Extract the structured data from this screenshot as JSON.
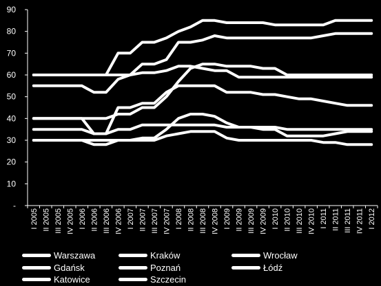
{
  "chart_data": {
    "type": "line",
    "title": "",
    "xlabel": "",
    "ylabel": "",
    "ylim": [
      0,
      90
    ],
    "yticks": [
      0,
      10,
      20,
      30,
      40,
      50,
      60,
      70,
      80,
      90
    ],
    "ytick_labels": [
      "-",
      "10",
      "20",
      "30",
      "40",
      "50",
      "60",
      "70",
      "80",
      "90"
    ],
    "grid": false,
    "legend_position": "bottom",
    "line_color": "#ffffff",
    "background_color": "#000000",
    "categories": [
      "I 2005",
      "II 2005",
      "III 2005",
      "IV 2005",
      "I 2006",
      "II 2006",
      "III 2006",
      "IV 2006",
      "I 2007",
      "II 2007",
      "III 2007",
      "IV 2007",
      "I 2008",
      "II 2008",
      "III 2008",
      "IV 2008",
      "I 2009",
      "II 2009",
      "III 2009",
      "IV 2009",
      "I 2010",
      "II 2010",
      "III 2010",
      "IV 2010",
      "I 2011",
      "II 2011",
      "III 2011",
      "IV 2011",
      "I 2012"
    ],
    "series": [
      {
        "name": "Warszawa",
        "values": [
          60,
          60,
          60,
          60,
          60,
          60,
          60,
          70,
          70,
          75,
          75,
          77,
          80,
          82,
          85,
          85,
          84,
          84,
          84,
          84,
          83,
          83,
          83,
          83,
          83,
          85,
          85,
          85,
          85
        ]
      },
      {
        "name": "Kraków",
        "values": [
          60,
          60,
          60,
          60,
          60,
          60,
          60,
          60,
          60,
          65,
          65,
          67,
          75,
          75,
          76,
          78,
          77,
          77,
          77,
          77,
          77,
          77,
          77,
          77,
          78,
          79,
          79,
          79,
          79
        ]
      },
      {
        "name": "Wrocław",
        "values": [
          40,
          40,
          40,
          40,
          40,
          40,
          40,
          42,
          42,
          45,
          45,
          50,
          57,
          63,
          65,
          65,
          64,
          64,
          64,
          63,
          63,
          60,
          60,
          60,
          60,
          60,
          60,
          60,
          60
        ]
      },
      {
        "name": "Gdańsk",
        "values": [
          55,
          55,
          55,
          55,
          55,
          52,
          52,
          58,
          60,
          61,
          61,
          62,
          64,
          64,
          63,
          62,
          62,
          59,
          59,
          59,
          59,
          59,
          59,
          59,
          59,
          59,
          59,
          59,
          59
        ]
      },
      {
        "name": "Poznań",
        "values": [
          40,
          40,
          40,
          40,
          40,
          33,
          33,
          45,
          45,
          47,
          47,
          52,
          55,
          55,
          55,
          55,
          52,
          52,
          52,
          51,
          51,
          50,
          49,
          49,
          48,
          47,
          46,
          46,
          46
        ]
      },
      {
        "name": "Łódź",
        "values": [
          35,
          35,
          35,
          35,
          35,
          33,
          33,
          35,
          35,
          37,
          37,
          37,
          37,
          37,
          37,
          37,
          36,
          36,
          36,
          36,
          36,
          35,
          35,
          35,
          35,
          35,
          35,
          35,
          35
        ]
      },
      {
        "name": "Katowice",
        "values": [
          30,
          30,
          30,
          30,
          30,
          28,
          28,
          30,
          30,
          31,
          31,
          35,
          40,
          42,
          42,
          41,
          38,
          36,
          36,
          35,
          35,
          32,
          32,
          32,
          32,
          33,
          34,
          34,
          34
        ]
      },
      {
        "name": "Szczecin",
        "values": [
          30,
          30,
          30,
          30,
          30,
          30,
          30,
          30,
          30,
          30,
          30,
          32,
          33,
          34,
          34,
          34,
          31,
          30,
          30,
          30,
          30,
          30,
          30,
          30,
          29,
          29,
          28,
          28,
          28
        ]
      }
    ]
  }
}
